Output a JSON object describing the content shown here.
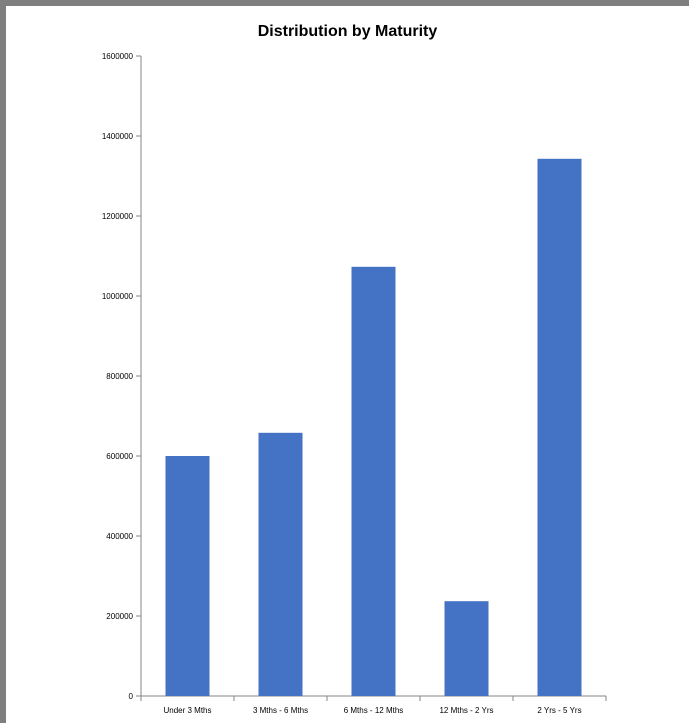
{
  "chart_data": {
    "type": "bar",
    "title": "Distribution by Maturity",
    "xlabel": "",
    "ylabel": "",
    "categories": [
      "Under 3 Mths",
      "3 Mths - 6 Mths",
      "6 Mths - 12 Mths",
      "12 Mths - 2 Yrs",
      "2 Yrs - 5 Yrs"
    ],
    "values": [
      600000,
      658000,
      1073000,
      237000,
      1343000
    ],
    "ylim": [
      0,
      1600000
    ],
    "yticks": [
      "0",
      "200000",
      "400000",
      "600000",
      "800000",
      "1000000",
      "1200000",
      "1400000",
      "1600000"
    ],
    "grid": false,
    "legend": "none",
    "bar_color": "#4472c4"
  }
}
